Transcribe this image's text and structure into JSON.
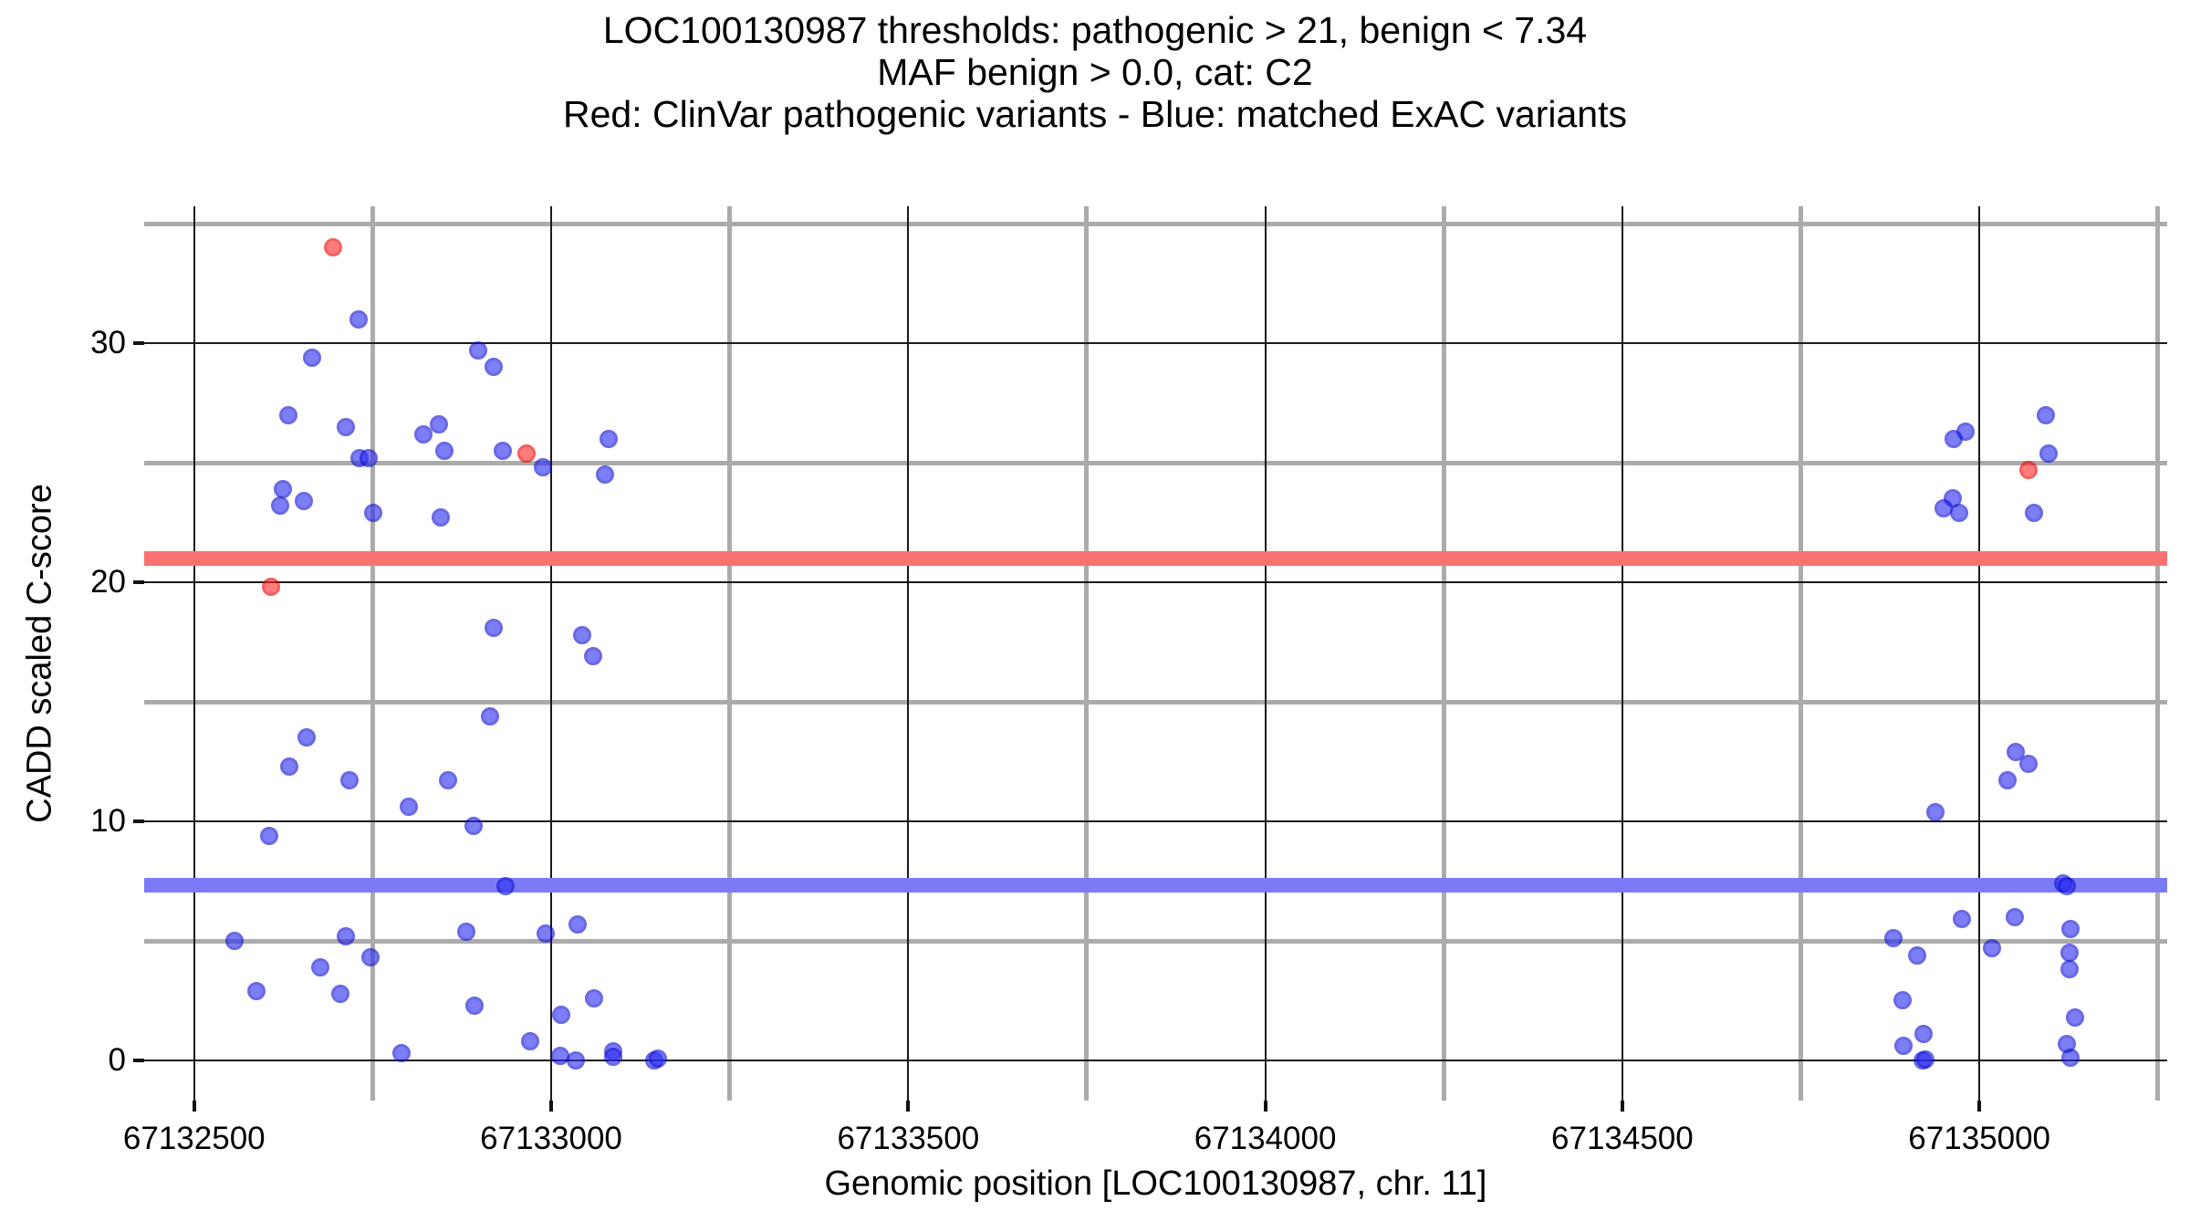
{
  "title": {
    "line1": "LOC100130987 thresholds: pathogenic > 21, benign < 7.34",
    "line2": "MAF benign > 0.0, cat: C2",
    "line3": "Red: ClinVar pathogenic variants - Blue: matched ExAC variants"
  },
  "axes": {
    "xlabel": "Genomic position [LOC100130987, chr. 11]",
    "ylabel": "CADD scaled C-score",
    "x_tick_labels": [
      "67132500",
      "67133000",
      "67133500",
      "67134000",
      "67134500",
      "67135000"
    ],
    "y_tick_labels": [
      "0",
      "10",
      "20",
      "30"
    ]
  },
  "colors": {
    "blue_point_fill": "#2E2EF0",
    "blue_point_border": "#0F0FD6",
    "red_point_fill": "#FF2D2D",
    "red_point_border": "#EE0000",
    "red_band": "#F97171",
    "blue_band": "#7B7BF8",
    "grid_major": "#1A1A1A",
    "grid_minor": "#ABABAB"
  },
  "chart_data": {
    "type": "scatter",
    "title": "LOC100130987 thresholds: pathogenic > 21, benign < 7.34 / MAF benign > 0.0, cat: C2",
    "xlabel": "Genomic position [LOC100130987, chr. 11]",
    "ylabel": "CADD scaled C-score",
    "x_domain": [
      67132430,
      67135263
    ],
    "y_domain": [
      -1.68,
      35.73
    ],
    "grid": true,
    "x_major": [
      67132500,
      67133000,
      67133500,
      67134000,
      67134500,
      67135000
    ],
    "x_minor": [
      67132750,
      67133250,
      67133750,
      67134250,
      67134750,
      67135250
    ],
    "y_major": [
      0,
      10,
      20,
      30
    ],
    "y_minor": [
      5,
      15,
      25,
      35
    ],
    "thresholds": [
      {
        "name": "pathogenic",
        "value": 21,
        "color_key": "red_band"
      },
      {
        "name": "benign",
        "value": 7.34,
        "color_key": "blue_band"
      }
    ],
    "series": [
      {
        "name": "ClinVar pathogenic variants",
        "color": "red",
        "points": [
          {
            "x": 67132695,
            "y": 34.0
          },
          {
            "x": 67132966,
            "y": 25.4
          },
          {
            "x": 67132607,
            "y": 19.8
          },
          {
            "x": 67135069,
            "y": 24.7
          }
        ]
      },
      {
        "name": "matched ExAC variants",
        "color": "blue",
        "points": [
          {
            "x": 67132730,
            "y": 31.0
          },
          {
            "x": 67132898,
            "y": 29.7
          },
          {
            "x": 67132919,
            "y": 29.0
          },
          {
            "x": 67132665,
            "y": 29.4
          },
          {
            "x": 67132632,
            "y": 27.0
          },
          {
            "x": 67132843,
            "y": 26.6
          },
          {
            "x": 67132713,
            "y": 26.5
          },
          {
            "x": 67132821,
            "y": 26.2
          },
          {
            "x": 67133081,
            "y": 26.0
          },
          {
            "x": 67132850,
            "y": 25.5
          },
          {
            "x": 67132932,
            "y": 25.5
          },
          {
            "x": 67132732,
            "y": 25.2
          },
          {
            "x": 67132744,
            "y": 25.2
          },
          {
            "x": 67132988,
            "y": 24.8
          },
          {
            "x": 67133075,
            "y": 24.5
          },
          {
            "x": 67132624,
            "y": 23.9
          },
          {
            "x": 67132654,
            "y": 23.4
          },
          {
            "x": 67132621,
            "y": 23.2
          },
          {
            "x": 67132751,
            "y": 22.9
          },
          {
            "x": 67132845,
            "y": 22.7
          },
          {
            "x": 67132920,
            "y": 18.1
          },
          {
            "x": 67133043,
            "y": 17.8
          },
          {
            "x": 67133059,
            "y": 16.9
          },
          {
            "x": 67132914,
            "y": 14.4
          },
          {
            "x": 67132658,
            "y": 13.5
          },
          {
            "x": 67132633,
            "y": 12.3
          },
          {
            "x": 67132718,
            "y": 11.7
          },
          {
            "x": 67132855,
            "y": 11.7
          },
          {
            "x": 67132801,
            "y": 10.6
          },
          {
            "x": 67132891,
            "y": 9.8
          },
          {
            "x": 67132605,
            "y": 9.4
          },
          {
            "x": 67132936,
            "y": 7.3
          },
          {
            "x": 67133037,
            "y": 5.7
          },
          {
            "x": 67132881,
            "y": 5.4
          },
          {
            "x": 67132992,
            "y": 5.3
          },
          {
            "x": 67132713,
            "y": 5.2
          },
          {
            "x": 67132556,
            "y": 5.0
          },
          {
            "x": 67132747,
            "y": 4.3
          },
          {
            "x": 67132676,
            "y": 3.9
          },
          {
            "x": 67132587,
            "y": 2.9
          },
          {
            "x": 67132705,
            "y": 2.8
          },
          {
            "x": 67133060,
            "y": 2.6
          },
          {
            "x": 67132892,
            "y": 2.3
          },
          {
            "x": 67133014,
            "y": 1.9
          },
          {
            "x": 67132971,
            "y": 0.8
          },
          {
            "x": 67133087,
            "y": 0.4
          },
          {
            "x": 67132790,
            "y": 0.3
          },
          {
            "x": 67133013,
            "y": 0.2
          },
          {
            "x": 67133087,
            "y": 0.15
          },
          {
            "x": 67133035,
            "y": 0.0
          },
          {
            "x": 67133144,
            "y": 0.0
          },
          {
            "x": 67133149,
            "y": 0.08
          },
          {
            "x": 67135093,
            "y": 27.0
          },
          {
            "x": 67134981,
            "y": 26.3
          },
          {
            "x": 67134964,
            "y": 26.0
          },
          {
            "x": 67135097,
            "y": 25.4
          },
          {
            "x": 67134963,
            "y": 23.5
          },
          {
            "x": 67134950,
            "y": 23.1
          },
          {
            "x": 67134972,
            "y": 22.9
          },
          {
            "x": 67135077,
            "y": 22.9
          },
          {
            "x": 67135051,
            "y": 12.9
          },
          {
            "x": 67135069,
            "y": 12.4
          },
          {
            "x": 67135040,
            "y": 11.7
          },
          {
            "x": 67134938,
            "y": 10.4
          },
          {
            "x": 67135117,
            "y": 7.4
          },
          {
            "x": 67135122,
            "y": 7.3
          },
          {
            "x": 67135050,
            "y": 6.0
          },
          {
            "x": 67134975,
            "y": 5.9
          },
          {
            "x": 67135128,
            "y": 5.5
          },
          {
            "x": 67134880,
            "y": 5.1
          },
          {
            "x": 67135018,
            "y": 4.7
          },
          {
            "x": 67135126,
            "y": 4.5
          },
          {
            "x": 67134913,
            "y": 4.4
          },
          {
            "x": 67135126,
            "y": 3.8
          },
          {
            "x": 67134893,
            "y": 2.5
          },
          {
            "x": 67135134,
            "y": 1.8
          },
          {
            "x": 67134922,
            "y": 1.1
          },
          {
            "x": 67135122,
            "y": 0.7
          },
          {
            "x": 67134894,
            "y": 0.6
          },
          {
            "x": 67135128,
            "y": 0.1
          },
          {
            "x": 67134920,
            "y": 0.0
          },
          {
            "x": 67134924,
            "y": 0.05
          }
        ]
      }
    ]
  }
}
